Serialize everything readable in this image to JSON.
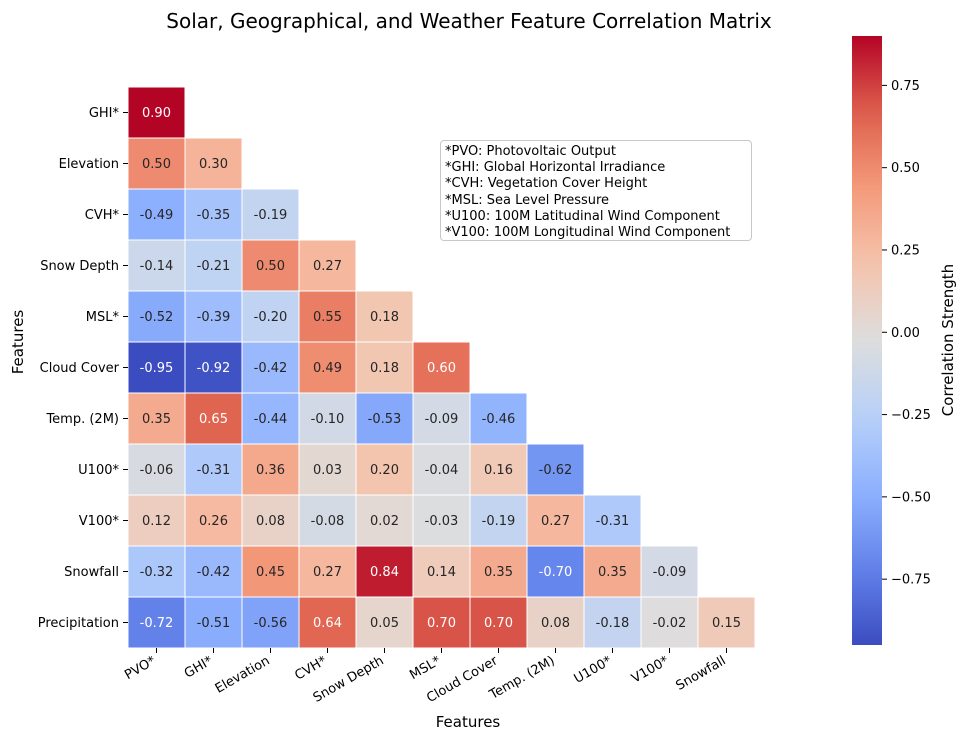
{
  "chart_data": {
    "type": "heatmap",
    "title": "Solar, Geographical, and Weather Feature Correlation Matrix",
    "xlabel": "Features",
    "ylabel": "Features",
    "colorbar_label": "Correlation Strength",
    "colormap": "coolwarm",
    "vmin": -0.95,
    "vmax": 0.9,
    "colorbar_ticks": [
      "0.75",
      "0.50",
      "0.25",
      "0.00",
      "−0.25",
      "−0.50",
      "−0.75"
    ],
    "colorbar_tick_values": [
      0.75,
      0.5,
      0.25,
      0.0,
      -0.25,
      -0.5,
      -0.75
    ],
    "x_categories": [
      "PVO*",
      "GHI*",
      "Elevation",
      "CVH*",
      "Snow Depth",
      "MSL*",
      "Cloud Cover",
      "Temp. (2M)",
      "U100*",
      "V100*",
      "Snowfall"
    ],
    "y_categories": [
      "GHI*",
      "Elevation",
      "CVH*",
      "Snow Depth",
      "MSL*",
      "Cloud Cover",
      "Temp. (2M)",
      "U100*",
      "V100*",
      "Snowfall",
      "Precipitation"
    ],
    "values": [
      [
        0.9
      ],
      [
        0.5,
        0.3
      ],
      [
        -0.49,
        -0.35,
        -0.19
      ],
      [
        -0.14,
        -0.21,
        0.5,
        0.27
      ],
      [
        -0.52,
        -0.39,
        -0.2,
        0.55,
        0.18
      ],
      [
        -0.95,
        -0.92,
        -0.42,
        0.49,
        0.18,
        0.6
      ],
      [
        0.35,
        0.65,
        -0.44,
        -0.1,
        -0.53,
        -0.09,
        -0.46
      ],
      [
        -0.06,
        -0.31,
        0.36,
        0.03,
        0.2,
        -0.04,
        0.16,
        -0.62
      ],
      [
        0.12,
        0.26,
        0.08,
        -0.08,
        0.02,
        -0.03,
        -0.19,
        0.27,
        -0.31
      ],
      [
        -0.32,
        -0.42,
        0.45,
        0.27,
        0.84,
        0.14,
        0.35,
        -0.7,
        0.35,
        -0.09
      ],
      [
        -0.72,
        -0.51,
        -0.56,
        0.64,
        0.05,
        0.7,
        0.7,
        0.08,
        -0.18,
        -0.02,
        0.15
      ]
    ],
    "annotations": [
      "*PVO: Photovoltaic Output",
      "*GHI: Global Horizontal Irradiance",
      "*CVH: Vegetation Cover Height",
      "*MSL: Sea Level Pressure",
      "*U100: 100M Latitudinal Wind Component",
      "*V100: 100M Longitudinal Wind Component"
    ],
    "grid": false
  }
}
